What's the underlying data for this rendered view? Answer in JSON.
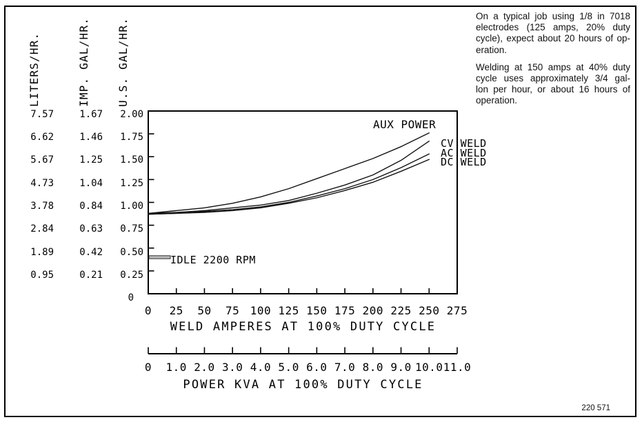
{
  "frame": {
    "part_number": "220 571"
  },
  "notes": {
    "paragraphs": [
      [
        "On a typical job using 1/8 in 7018",
        "electrodes (125 amps, 20% duty",
        "cycle), expect about 20 hours of op-",
        "eration."
      ],
      [
        "Welding at 150 amps at 40% duty",
        "cycle uses approximately 3/4 gal-",
        "lon per hour, or about 16 hours of",
        "operation."
      ]
    ]
  },
  "chart_data": {
    "type": "line",
    "title": "",
    "x": [
      0,
      25,
      50,
      75,
      100,
      125,
      150,
      175,
      200,
      225,
      250
    ],
    "series_unit": "U.S. GAL/HR.",
    "series": [
      {
        "name": "AUX POWER",
        "values": [
          0.88,
          0.91,
          0.94,
          0.99,
          1.06,
          1.15,
          1.26,
          1.37,
          1.48,
          1.61,
          1.76
        ]
      },
      {
        "name": "CV WELD",
        "values": [
          0.88,
          0.89,
          0.91,
          0.94,
          0.97,
          1.02,
          1.1,
          1.19,
          1.3,
          1.46,
          1.67
        ]
      },
      {
        "name": "AC WELD",
        "values": [
          0.87,
          0.88,
          0.9,
          0.92,
          0.95,
          1.0,
          1.07,
          1.15,
          1.25,
          1.38,
          1.53
        ]
      },
      {
        "name": "DC WELD",
        "values": [
          0.87,
          0.88,
          0.89,
          0.91,
          0.94,
          0.99,
          1.05,
          1.13,
          1.22,
          1.34,
          1.47
        ]
      }
    ],
    "idle_marker": {
      "label": "IDLE 2200 RPM",
      "value": 0.4
    },
    "y_axes": [
      {
        "label": "LITERS/HR.",
        "ticks": [
          "7.57",
          "6.62",
          "5.67",
          "4.73",
          "3.78",
          "2.84",
          "1.89",
          "0.95",
          ""
        ]
      },
      {
        "label": "IMP. GAL/HR.",
        "ticks": [
          "1.67",
          "1.46",
          "1.25",
          "1.04",
          "0.84",
          "0.63",
          "0.42",
          "0.21",
          ""
        ]
      },
      {
        "label": "U.S. GAL/HR.",
        "ticks": [
          "2.00",
          "1.75",
          "1.50",
          "1.25",
          "1.00",
          "0.75",
          "0.50",
          "0.25",
          "0"
        ]
      }
    ],
    "x_axes": [
      {
        "label": "WELD AMPERES AT 100% DUTY CYCLE",
        "ticks": [
          "0",
          "25",
          "50",
          "75",
          "100",
          "125",
          "150",
          "175",
          "200",
          "225",
          "250",
          "275"
        ]
      },
      {
        "label": "POWER KVA AT 100% DUTY CYCLE",
        "ticks": [
          "0",
          "1.0",
          "2.0",
          "3.0",
          "4.0",
          "5.0",
          "6.0",
          "7.0",
          "8.0",
          "9.0",
          "10.0",
          "11.0"
        ]
      }
    ],
    "xlim": [
      0,
      275
    ],
    "ylim": [
      0,
      2.0
    ],
    "grid": false,
    "legend_position": "curve-end labels"
  }
}
